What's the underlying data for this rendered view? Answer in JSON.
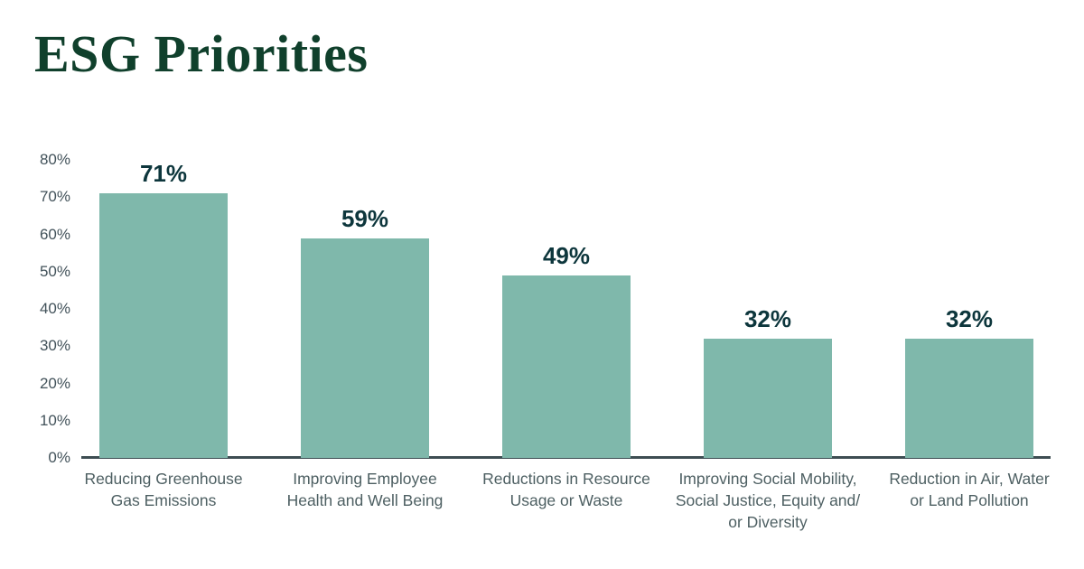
{
  "header": {
    "title": "ESG Priorities"
  },
  "colors": {
    "background": "#ffffff",
    "title": "#10402c",
    "bar": "#7fb8ab",
    "value_label": "#0d363c",
    "tick_label": "#42525a",
    "category_label": "#4d5f62",
    "axis_line": "#3d4d52"
  },
  "chart_data": {
    "type": "bar",
    "title": "ESG Priorities",
    "categories": [
      "Reducing Greenhouse Gas Emissions",
      "Improving Employee Health and Well Being",
      "Reductions in Resource Usage or Waste",
      "Improving Social Mobility, Social Justice, Equity and/or Diversity",
      "Reduction in Air, Water or Land Pollution"
    ],
    "category_display": [
      "Reducing Greenhouse\nGas Emissions",
      "Improving Employee\nHealth and Well Being",
      "Reductions in Resource\nUsage or Waste",
      "Improving Social Mobility,\nSocial Justice, Equity and/\nor Diversity",
      "Reduction in Air, Water\nor Land Pollution"
    ],
    "values": [
      71,
      59,
      49,
      32,
      32
    ],
    "value_labels": [
      "71%",
      "59%",
      "49%",
      "32%",
      "32%"
    ],
    "xlabel": "",
    "ylabel": "",
    "ylim": [
      0,
      80
    ],
    "yticks": [
      0,
      10,
      20,
      30,
      40,
      50,
      60,
      70,
      80
    ],
    "ytick_labels": [
      "0%",
      "10%",
      "20%",
      "30%",
      "40%",
      "50%",
      "60%",
      "70%",
      "80%"
    ],
    "grid": false,
    "legend": "none"
  }
}
